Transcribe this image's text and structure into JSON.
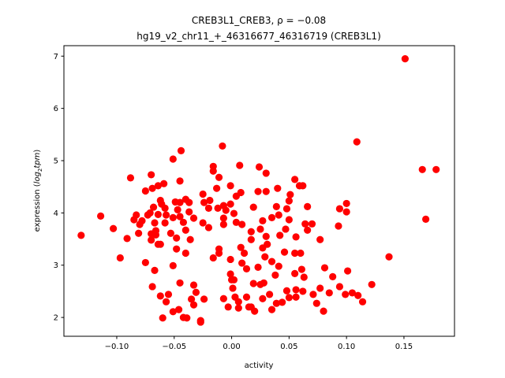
{
  "chart_data": {
    "type": "scatter",
    "title_line1": "CREB3L1_CREB3, ρ = −0.08",
    "title_line2": "hg19_v2_chr11_+_46316677_46316719 (CREB3L1)",
    "xlabel": "activity",
    "ylabel_prefix": "expression (",
    "ylabel_math": "log",
    "ylabel_sub": "2",
    "ylabel_math2": "tpm",
    "ylabel_suffix": ")",
    "xlim": [
      -0.146,
      0.194
    ],
    "ylim": [
      1.64,
      7.2
    ],
    "xticks": [
      -0.1,
      -0.05,
      0.0,
      0.05,
      0.1,
      0.15
    ],
    "xtick_labels": [
      "−0.10",
      "−0.05",
      "0.00",
      "0.05",
      "0.10",
      "0.15"
    ],
    "yticks": [
      2,
      3,
      4,
      5,
      6,
      7
    ],
    "ytick_labels": [
      "2",
      "3",
      "4",
      "5",
      "6",
      "7"
    ],
    "grid": false,
    "marker_color": "#ff0000",
    "points": [
      [
        -0.008,
        5.28
      ],
      [
        -0.044,
        5.19
      ],
      [
        -0.051,
        5.03
      ],
      [
        -0.016,
        4.89
      ],
      [
        -0.016,
        4.8
      ],
      [
        -0.011,
        4.68
      ],
      [
        -0.088,
        4.67
      ],
      [
        -0.07,
        4.73
      ],
      [
        -0.045,
        4.61
      ],
      [
        -0.013,
        4.47
      ],
      [
        -0.075,
        4.42
      ],
      [
        -0.069,
        4.47
      ],
      [
        -0.064,
        4.52
      ],
      [
        -0.059,
        4.56
      ],
      [
        -0.025,
        4.36
      ],
      [
        -0.019,
        4.24
      ],
      [
        -0.024,
        4.2
      ],
      [
        -0.02,
        4.09
      ],
      [
        -0.012,
        4.09
      ],
      [
        -0.062,
        4.24
      ],
      [
        -0.061,
        4.17
      ],
      [
        -0.058,
        4.09
      ],
      [
        -0.049,
        4.21
      ],
      [
        -0.045,
        4.2
      ],
      [
        -0.04,
        4.26
      ],
      [
        -0.037,
        4.2
      ],
      [
        -0.047,
        4.06
      ],
      [
        -0.037,
        4.02
      ],
      [
        -0.068,
        4.11
      ],
      [
        -0.083,
        3.96
      ],
      [
        -0.073,
        3.96
      ],
      [
        -0.085,
        3.87
      ],
      [
        -0.078,
        3.85
      ],
      [
        -0.08,
        3.78
      ],
      [
        -0.071,
        4.0
      ],
      [
        -0.064,
        3.97
      ],
      [
        -0.057,
        3.96
      ],
      [
        -0.051,
        3.91
      ],
      [
        -0.045,
        3.93
      ],
      [
        -0.042,
        3.82
      ],
      [
        -0.033,
        3.9
      ],
      [
        -0.025,
        3.81
      ],
      [
        -0.02,
        3.72
      ],
      [
        -0.067,
        3.81
      ],
      [
        -0.058,
        3.81
      ],
      [
        -0.114,
        3.94
      ],
      [
        -0.103,
        3.7
      ],
      [
        -0.131,
        3.57
      ],
      [
        -0.091,
        3.51
      ],
      [
        -0.081,
        3.61
      ],
      [
        -0.07,
        3.6
      ],
      [
        -0.066,
        3.66
      ],
      [
        -0.066,
        3.58
      ],
      [
        -0.07,
        3.48
      ],
      [
        -0.064,
        3.4
      ],
      [
        -0.062,
        3.4
      ],
      [
        -0.053,
        3.61
      ],
      [
        -0.048,
        3.52
      ],
      [
        -0.04,
        3.67
      ],
      [
        -0.036,
        3.49
      ],
      [
        -0.048,
        3.31
      ],
      [
        -0.04,
        3.23
      ],
      [
        -0.097,
        3.14
      ],
      [
        -0.075,
        3.05
      ],
      [
        -0.067,
        2.9
      ],
      [
        -0.051,
        2.99
      ],
      [
        -0.011,
        3.31
      ],
      [
        -0.011,
        3.23
      ],
      [
        -0.016,
        3.14
      ],
      [
        -0.069,
        2.59
      ],
      [
        -0.045,
        2.66
      ],
      [
        -0.033,
        2.62
      ],
      [
        -0.031,
        2.48
      ],
      [
        -0.062,
        2.41
      ],
      [
        -0.055,
        2.44
      ],
      [
        -0.057,
        2.3
      ],
      [
        -0.035,
        2.35
      ],
      [
        -0.033,
        2.24
      ],
      [
        -0.024,
        2.35
      ],
      [
        -0.051,
        2.11
      ],
      [
        -0.046,
        2.15
      ],
      [
        -0.06,
        1.99
      ],
      [
        -0.042,
        2.0
      ],
      [
        -0.039,
        1.99
      ],
      [
        -0.027,
        1.91
      ],
      [
        -0.027,
        1.94
      ],
      [
        0.151,
        6.95
      ],
      [
        0.109,
        5.36
      ],
      [
        0.007,
        4.91
      ],
      [
        0.024,
        4.88
      ],
      [
        0.03,
        4.76
      ],
      [
        0.055,
        4.64
      ],
      [
        -0.001,
        4.52
      ],
      [
        0.059,
        4.52
      ],
      [
        0.062,
        4.52
      ],
      [
        0.04,
        4.47
      ],
      [
        0.023,
        4.41
      ],
      [
        0.03,
        4.41
      ],
      [
        0.008,
        4.39
      ],
      [
        0.004,
        4.32
      ],
      [
        0.051,
        4.35
      ],
      [
        0.05,
        4.23
      ],
      [
        -0.001,
        4.17
      ],
      [
        -0.007,
        4.14
      ],
      [
        -0.005,
        4.05
      ],
      [
        0.002,
        3.99
      ],
      [
        0.019,
        4.11
      ],
      [
        0.039,
        4.12
      ],
      [
        0.048,
        4.08
      ],
      [
        0.066,
        4.12
      ],
      [
        0.1,
        4.18
      ],
      [
        0.094,
        4.08
      ],
      [
        0.1,
        4.02
      ],
      [
        0.041,
        3.96
      ],
      [
        0.035,
        3.91
      ],
      [
        -0.007,
        3.9
      ],
      [
        -0.007,
        3.78
      ],
      [
        0.004,
        3.82
      ],
      [
        0.009,
        3.78
      ],
      [
        0.027,
        3.85
      ],
      [
        0.05,
        3.87
      ],
      [
        0.064,
        3.79
      ],
      [
        0.07,
        3.79
      ],
      [
        0.066,
        3.67
      ],
      [
        0.093,
        3.75
      ],
      [
        0.017,
        3.64
      ],
      [
        0.025,
        3.69
      ],
      [
        0.047,
        3.69
      ],
      [
        0.017,
        3.49
      ],
      [
        0.03,
        3.55
      ],
      [
        0.042,
        3.57
      ],
      [
        0.056,
        3.54
      ],
      [
        0.077,
        3.49
      ],
      [
        0.031,
        3.4
      ],
      [
        0.027,
        3.33
      ],
      [
        0.008,
        3.34
      ],
      [
        0.011,
        3.23
      ],
      [
        0.046,
        3.25
      ],
      [
        0.055,
        3.23
      ],
      [
        0.06,
        3.23
      ],
      [
        0.029,
        3.16
      ],
      [
        -0.001,
        3.11
      ],
      [
        0.009,
        3.04
      ],
      [
        0.013,
        2.93
      ],
      [
        0.035,
        3.07
      ],
      [
        0.041,
        2.98
      ],
      [
        0.023,
        2.96
      ],
      [
        0.137,
        3.16
      ],
      [
        0.081,
        2.95
      ],
      [
        0.101,
        2.89
      ],
      [
        0.061,
        2.92
      ],
      [
        0.055,
        2.84
      ],
      [
        0.063,
        2.77
      ],
      [
        0.038,
        2.81
      ],
      [
        -0.001,
        2.83
      ],
      [
        0.0,
        2.72
      ],
      [
        0.002,
        2.72
      ],
      [
        0.001,
        2.56
      ],
      [
        0.019,
        2.65
      ],
      [
        0.025,
        2.63
      ],
      [
        0.028,
        2.66
      ],
      [
        0.088,
        2.78
      ],
      [
        0.122,
        2.63
      ],
      [
        0.094,
        2.59
      ],
      [
        0.077,
        2.56
      ],
      [
        0.085,
        2.47
      ],
      [
        0.071,
        2.44
      ],
      [
        0.099,
        2.44
      ],
      [
        0.105,
        2.47
      ],
      [
        0.11,
        2.42
      ],
      [
        0.114,
        2.3
      ],
      [
        0.074,
        2.27
      ],
      [
        0.08,
        2.12
      ],
      [
        0.048,
        2.51
      ],
      [
        0.056,
        2.53
      ],
      [
        0.062,
        2.5
      ],
      [
        0.05,
        2.38
      ],
      [
        0.056,
        2.39
      ],
      [
        0.033,
        2.44
      ],
      [
        0.027,
        2.36
      ],
      [
        0.013,
        2.39
      ],
      [
        0.003,
        2.39
      ],
      [
        0.006,
        2.3
      ],
      [
        0.006,
        2.18
      ],
      [
        -0.007,
        2.36
      ],
      [
        -0.003,
        2.2
      ],
      [
        0.015,
        2.2
      ],
      [
        0.017,
        2.2
      ],
      [
        0.02,
        2.12
      ],
      [
        0.035,
        2.15
      ],
      [
        0.039,
        2.27
      ],
      [
        0.044,
        2.29
      ],
      [
        0.166,
        4.83
      ],
      [
        0.178,
        4.83
      ],
      [
        0.169,
        3.88
      ]
    ]
  }
}
